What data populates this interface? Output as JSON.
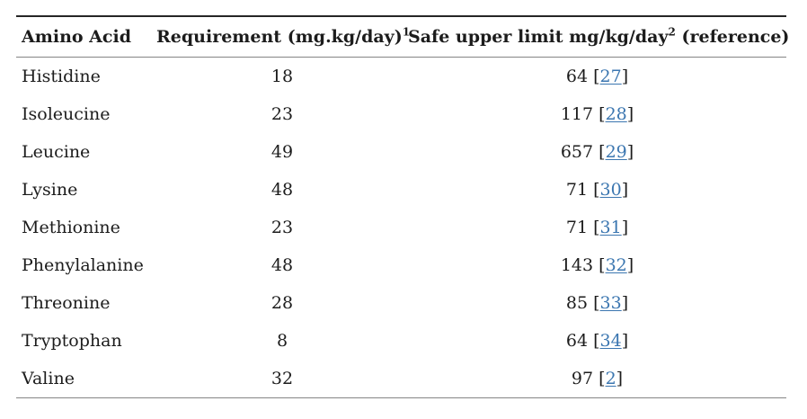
{
  "colors": {
    "text": "#1c1c1c",
    "link": "#3b76b0",
    "top_border": "#262626",
    "rule": "#858585",
    "background": "#ffffff"
  },
  "table": {
    "header": {
      "amino_acid": "Amino Acid",
      "requirement_label": "Requirement (mg.kg/day)",
      "requirement_sup": "1",
      "safe_label": "Safe upper limit mg/kg/day",
      "safe_sup": "2",
      "safe_suffix": " (reference)"
    },
    "brackets": {
      "open": "[",
      "close": "]"
    },
    "rows": [
      {
        "amino_acid": "Histidine",
        "requirement": "18",
        "safe_value": "64",
        "ref": "27"
      },
      {
        "amino_acid": "Isoleucine",
        "requirement": "23",
        "safe_value": "117",
        "ref": "28"
      },
      {
        "amino_acid": "Leucine",
        "requirement": "49",
        "safe_value": "657",
        "ref": "29"
      },
      {
        "amino_acid": "Lysine",
        "requirement": "48",
        "safe_value": "71",
        "ref": "30"
      },
      {
        "amino_acid": "Methionine",
        "requirement": "23",
        "safe_value": "71",
        "ref": "31"
      },
      {
        "amino_acid": "Phenylalanine",
        "requirement": "48",
        "safe_value": "143",
        "ref": "32"
      },
      {
        "amino_acid": "Threonine",
        "requirement": "28",
        "safe_value": "85",
        "ref": "33"
      },
      {
        "amino_acid": "Tryptophan",
        "requirement": "8",
        "safe_value": "64",
        "ref": "34"
      },
      {
        "amino_acid": "Valine",
        "requirement": "32",
        "safe_value": "97",
        "ref": "2"
      }
    ]
  }
}
